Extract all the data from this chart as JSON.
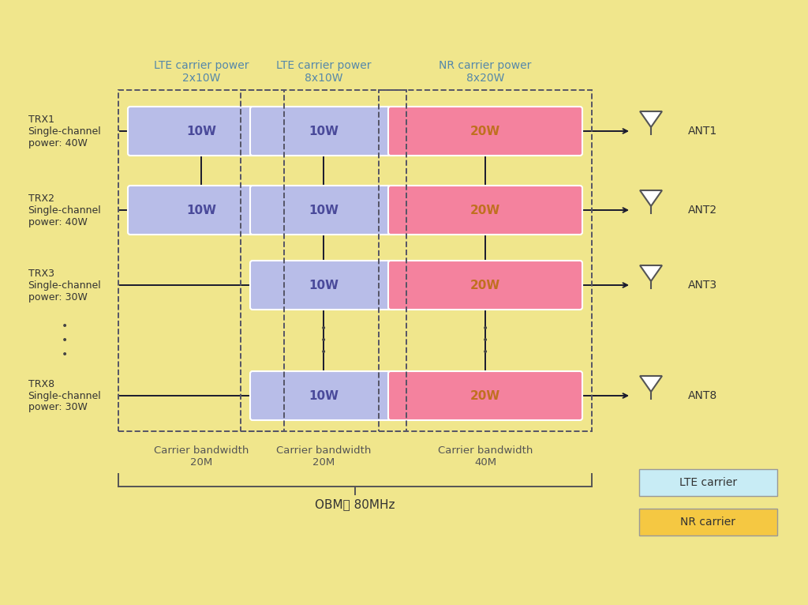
{
  "bg_color": "#f0e68c",
  "lte_carrier_color": "#b8bde8",
  "nr_carrier_color": "#f4829e",
  "lte_carrier_text_color": "#4a4a9a",
  "nr_carrier_text_color": "#c07020",
  "lte_box1_label": "LTE carrier power\n2x10W",
  "lte_box2_label": "LTE carrier power\n8x10W",
  "nr_box_label": "NR carrier power\n8x20W",
  "cb1_label": "Carrier bandwidth\n20M",
  "cb2_label": "Carrier bandwidth\n20M",
  "cb3_label": "Carrier bandwidth\n40M",
  "obm_label": "OBM： 80MHz",
  "trx_labels": [
    "TRX1\nSingle-channel\npower: 40W",
    "TRX2\nSingle-channel\npower: 40W",
    "TRX3\nSingle-channel\npower: 30W",
    "TRX8\nSingle-channel\npower: 30W"
  ],
  "ant_labels": [
    "ANT1",
    "ANT2",
    "ANT3",
    "ANT8"
  ],
  "legend_lte_color": "#c8ecf5",
  "legend_nr_color": "#f5c842",
  "legend_lte_text": "LTE carrier",
  "legend_nr_text": "NR carrier",
  "dashed_border_color": "#555566",
  "line_color": "#1a1a2e",
  "dots_color": "#444444",
  "header_color": "#5588aa",
  "text_color": "#333333",
  "bw_text_color": "#555555"
}
